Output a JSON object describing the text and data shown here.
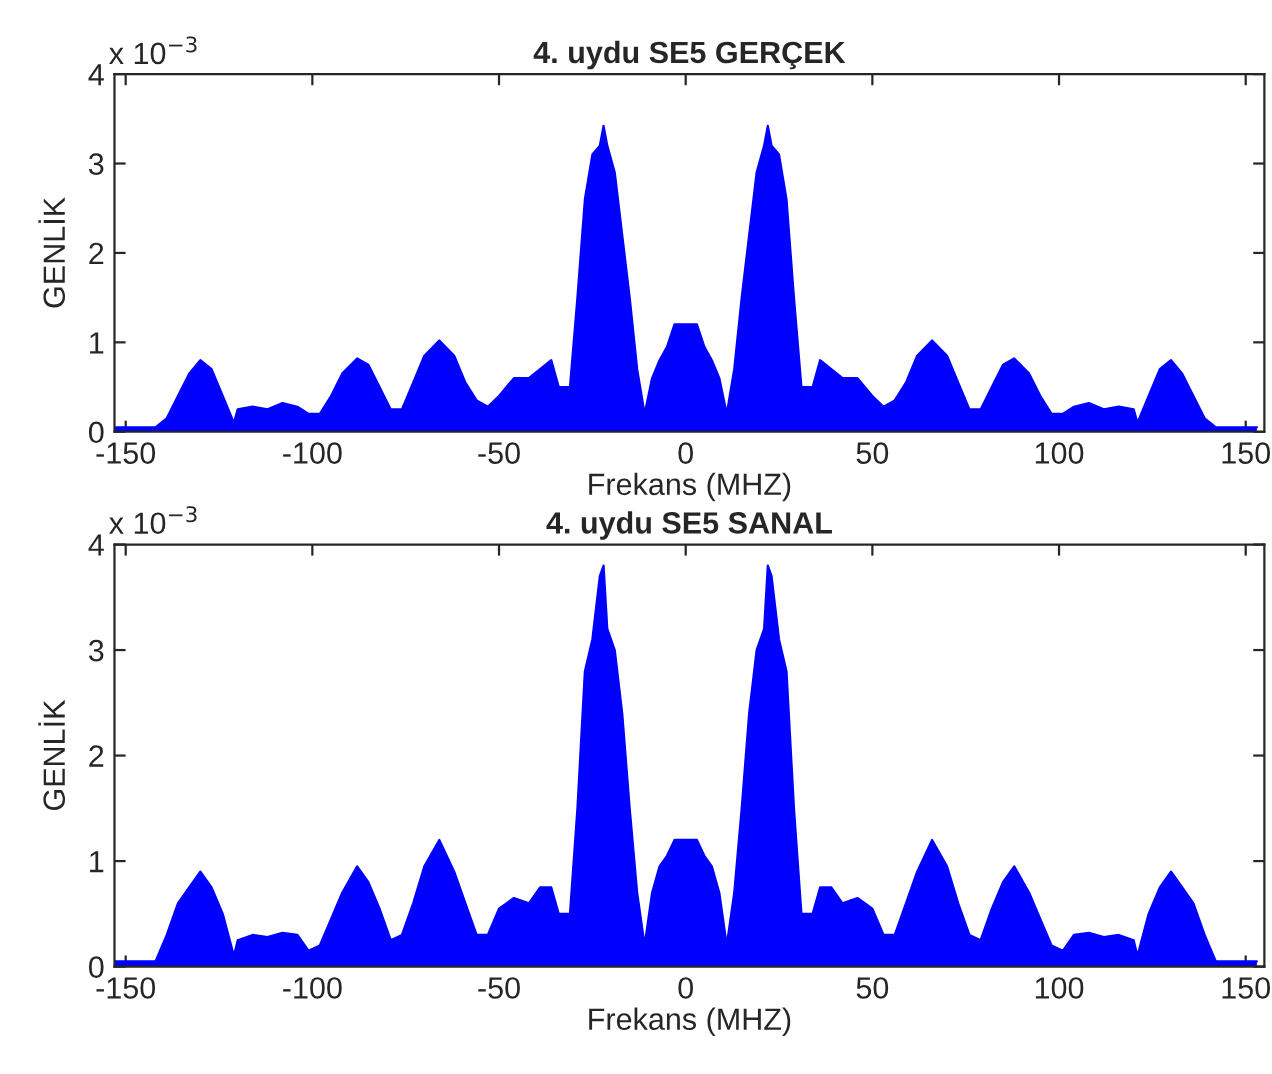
{
  "chart_data": [
    {
      "type": "area",
      "title": "4. uydu SE5 GERÇEK",
      "xlabel": "Frekans (MHZ)",
      "ylabel": "GENLİK",
      "annotations": [
        "x 10$^{−3}$"
      ],
      "x": [
        -153,
        -148,
        -142,
        -139,
        -136,
        -133,
        -130,
        -127,
        -124,
        -121,
        -120,
        -116,
        -112,
        -108,
        -104,
        -101,
        -98,
        -95,
        -92,
        -88,
        -85,
        -82,
        -79,
        -76,
        -73,
        -70,
        -66,
        -62,
        -59,
        -56,
        -53,
        -50,
        -46,
        -42,
        -39,
        -36,
        -34,
        -31,
        -29,
        -27,
        -25,
        -23,
        -22,
        -21,
        -19,
        -17,
        -15,
        -13,
        -11,
        -9,
        -7,
        -5,
        -3,
        0,
        3,
        5,
        7,
        9,
        11,
        13,
        15,
        17,
        19,
        21,
        22,
        23,
        25,
        27,
        29,
        31,
        34,
        36,
        39,
        42,
        46,
        50,
        53,
        56,
        59,
        62,
        66,
        70,
        73,
        76,
        79,
        82,
        85,
        88,
        92,
        95,
        98,
        101,
        104,
        108,
        112,
        116,
        120,
        121,
        124,
        127,
        130,
        133,
        136,
        139,
        142,
        148,
        153
      ],
      "series": [
        {
          "color": "#0000ff",
          "values": [
            0.05,
            0.05,
            0.05,
            0.15,
            0.4,
            0.65,
            0.8,
            0.7,
            0.4,
            0.1,
            0.25,
            0.28,
            0.25,
            0.32,
            0.28,
            0.2,
            0.2,
            0.4,
            0.65,
            0.82,
            0.75,
            0.5,
            0.25,
            0.25,
            0.55,
            0.85,
            1.02,
            0.85,
            0.55,
            0.35,
            0.28,
            0.4,
            0.6,
            0.6,
            0.7,
            0.8,
            0.5,
            0.5,
            1.5,
            2.6,
            3.1,
            3.2,
            3.42,
            3.2,
            2.9,
            2.2,
            1.5,
            0.7,
            0.2,
            0.6,
            0.8,
            0.95,
            1.2,
            1.2,
            1.2,
            0.95,
            0.8,
            0.6,
            0.2,
            0.7,
            1.5,
            2.2,
            2.9,
            3.2,
            3.42,
            3.2,
            3.1,
            2.6,
            1.5,
            0.5,
            0.5,
            0.8,
            0.7,
            0.6,
            0.6,
            0.4,
            0.28,
            0.35,
            0.55,
            0.85,
            1.02,
            0.85,
            0.55,
            0.25,
            0.25,
            0.5,
            0.75,
            0.82,
            0.65,
            0.4,
            0.2,
            0.2,
            0.28,
            0.32,
            0.25,
            0.28,
            0.25,
            0.1,
            0.4,
            0.7,
            0.8,
            0.65,
            0.4,
            0.15,
            0.05,
            0.05,
            0.05
          ]
        }
      ],
      "xlim": [
        -153,
        155
      ],
      "xticks": [
        -150,
        -100,
        -50,
        0,
        50,
        100,
        150
      ],
      "ylim": [
        0,
        4
      ],
      "yticks": [
        0,
        1,
        2,
        3,
        4
      ],
      "grid": false,
      "legend": false
    },
    {
      "type": "area",
      "title": "4. uydu SE5 SANAL",
      "xlabel": "Frekans (MHZ)",
      "ylabel": "GENLİK",
      "annotations": [
        "x 10$^{−3}$"
      ],
      "x": [
        -153,
        -148,
        -142,
        -139,
        -136,
        -133,
        -130,
        -127,
        -124,
        -121,
        -120,
        -116,
        -112,
        -108,
        -104,
        -101,
        -98,
        -95,
        -92,
        -88,
        -85,
        -82,
        -79,
        -76,
        -73,
        -70,
        -66,
        -62,
        -59,
        -56,
        -53,
        -50,
        -46,
        -42,
        -39,
        -36,
        -34,
        -31,
        -29,
        -27,
        -25,
        -23,
        -22,
        -21,
        -19,
        -17,
        -15,
        -13,
        -11,
        -9,
        -7,
        -5,
        -3,
        0,
        3,
        5,
        7,
        9,
        11,
        13,
        15,
        17,
        19,
        21,
        22,
        23,
        25,
        27,
        29,
        31,
        34,
        36,
        39,
        42,
        46,
        50,
        53,
        56,
        59,
        62,
        66,
        70,
        73,
        76,
        79,
        82,
        85,
        88,
        92,
        95,
        98,
        101,
        104,
        108,
        112,
        116,
        120,
        121,
        124,
        127,
        130,
        133,
        136,
        139,
        142,
        148,
        153
      ],
      "series": [
        {
          "color": "#0000ff",
          "values": [
            0.05,
            0.05,
            0.05,
            0.3,
            0.6,
            0.75,
            0.9,
            0.75,
            0.5,
            0.1,
            0.25,
            0.3,
            0.28,
            0.32,
            0.3,
            0.15,
            0.2,
            0.45,
            0.7,
            0.95,
            0.8,
            0.55,
            0.25,
            0.3,
            0.6,
            0.95,
            1.2,
            0.9,
            0.6,
            0.3,
            0.3,
            0.55,
            0.65,
            0.6,
            0.75,
            0.75,
            0.5,
            0.5,
            1.5,
            2.8,
            3.1,
            3.7,
            3.8,
            3.2,
            3.0,
            2.4,
            1.5,
            0.7,
            0.2,
            0.7,
            0.95,
            1.05,
            1.2,
            1.2,
            1.2,
            1.05,
            0.95,
            0.7,
            0.2,
            0.7,
            1.5,
            2.4,
            3.0,
            3.2,
            3.8,
            3.7,
            3.1,
            2.8,
            1.5,
            0.5,
            0.5,
            0.75,
            0.75,
            0.6,
            0.65,
            0.55,
            0.3,
            0.3,
            0.6,
            0.9,
            1.2,
            0.95,
            0.6,
            0.3,
            0.25,
            0.55,
            0.8,
            0.95,
            0.7,
            0.45,
            0.2,
            0.15,
            0.3,
            0.32,
            0.28,
            0.3,
            0.25,
            0.1,
            0.5,
            0.75,
            0.9,
            0.75,
            0.6,
            0.3,
            0.05,
            0.05,
            0.05
          ]
        }
      ],
      "xlim": [
        -153,
        155
      ],
      "xticks": [
        -150,
        -100,
        -50,
        0,
        50,
        100,
        150
      ],
      "ylim": [
        0,
        4
      ],
      "yticks": [
        0,
        1,
        2,
        3,
        4
      ],
      "grid": false,
      "legend": false
    }
  ]
}
